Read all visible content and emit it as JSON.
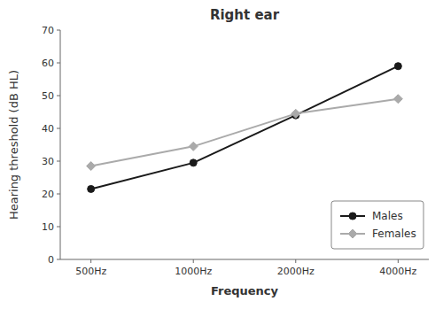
{
  "chart_data": {
    "type": "line",
    "title": "Right ear",
    "xlabel": "Frequency",
    "ylabel": "Hearing threshold (dB HL)",
    "categories": [
      "500Hz",
      "1000Hz",
      "2000Hz",
      "4000Hz"
    ],
    "series": [
      {
        "name": "Males",
        "color": "#1a1a1a",
        "marker": "circle",
        "values": [
          21.5,
          29.5,
          44.0,
          59.0
        ]
      },
      {
        "name": "Females",
        "color": "#aaaaaa",
        "marker": "diamond",
        "values": [
          28.5,
          34.5,
          44.5,
          49.0
        ]
      }
    ],
    "ylim": [
      0,
      70
    ],
    "yticks": [
      0,
      10,
      20,
      30,
      40,
      50,
      60,
      70
    ],
    "grid": false,
    "legend": "lower right"
  }
}
